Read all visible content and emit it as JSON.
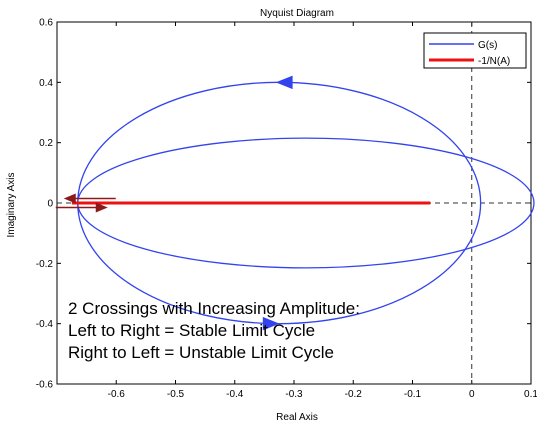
{
  "chart_data": {
    "type": "line",
    "title": "Nyquist Diagram",
    "xlabel": "Real Axis",
    "ylabel": "Imaginary Axis",
    "xlim": [
      -0.7,
      0.1
    ],
    "ylim": [
      -0.6,
      0.6
    ],
    "xticks": [
      -0.6,
      -0.5,
      -0.4,
      -0.3,
      -0.2,
      -0.1,
      0,
      0.1
    ],
    "xtick_labels": [
      "-0.6",
      "-0.5",
      "-0.4",
      "-0.3",
      "-0.2",
      "-0.1",
      "0",
      "0.1"
    ],
    "yticks": [
      -0.6,
      -0.4,
      -0.2,
      0,
      0.2,
      0.4,
      0.6
    ],
    "ytick_labels": [
      "-0.6",
      "-0.4",
      "-0.2",
      "0",
      "0.2",
      "0.4",
      "0.6"
    ],
    "grid": false,
    "legend": "top-right",
    "series": [
      {
        "name": "G(s)",
        "color": "#3344ee",
        "curves": [
          {
            "center": [
              -0.325,
              0.0
            ],
            "rx": 0.34,
            "ry": 0.4
          },
          {
            "center": [
              -0.28,
              0.0
            ],
            "rx": 0.385,
            "ry": 0.215
          }
        ],
        "direction_arrows": [
          {
            "x": -0.315,
            "y": 0.4,
            "pointing": "left"
          },
          {
            "x": -0.34,
            "y": -0.4,
            "pointing": "right"
          }
        ]
      },
      {
        "name": "-1/N(A)",
        "color": "#ee1111",
        "x": [
          -0.675,
          -0.07
        ],
        "y": [
          0,
          0
        ]
      }
    ],
    "crossing_arrows": [
      {
        "x": -0.665,
        "y": 0.015,
        "pointing": "left",
        "color": "#8b1a1a"
      },
      {
        "x": -0.665,
        "y": -0.015,
        "pointing": "right",
        "color": "#8b1a1a"
      }
    ],
    "reference_lines": [
      {
        "orientation": "vertical",
        "value": 0,
        "style": "dashed"
      },
      {
        "orientation": "horizontal",
        "value": 0,
        "style": "dashed"
      }
    ],
    "annotation_lines": [
      "2 Crossings with Increasing Amplitude:",
      "Left to Right = Stable Limit Cycle",
      "Right to Left = Unstable Limit Cycle"
    ]
  }
}
